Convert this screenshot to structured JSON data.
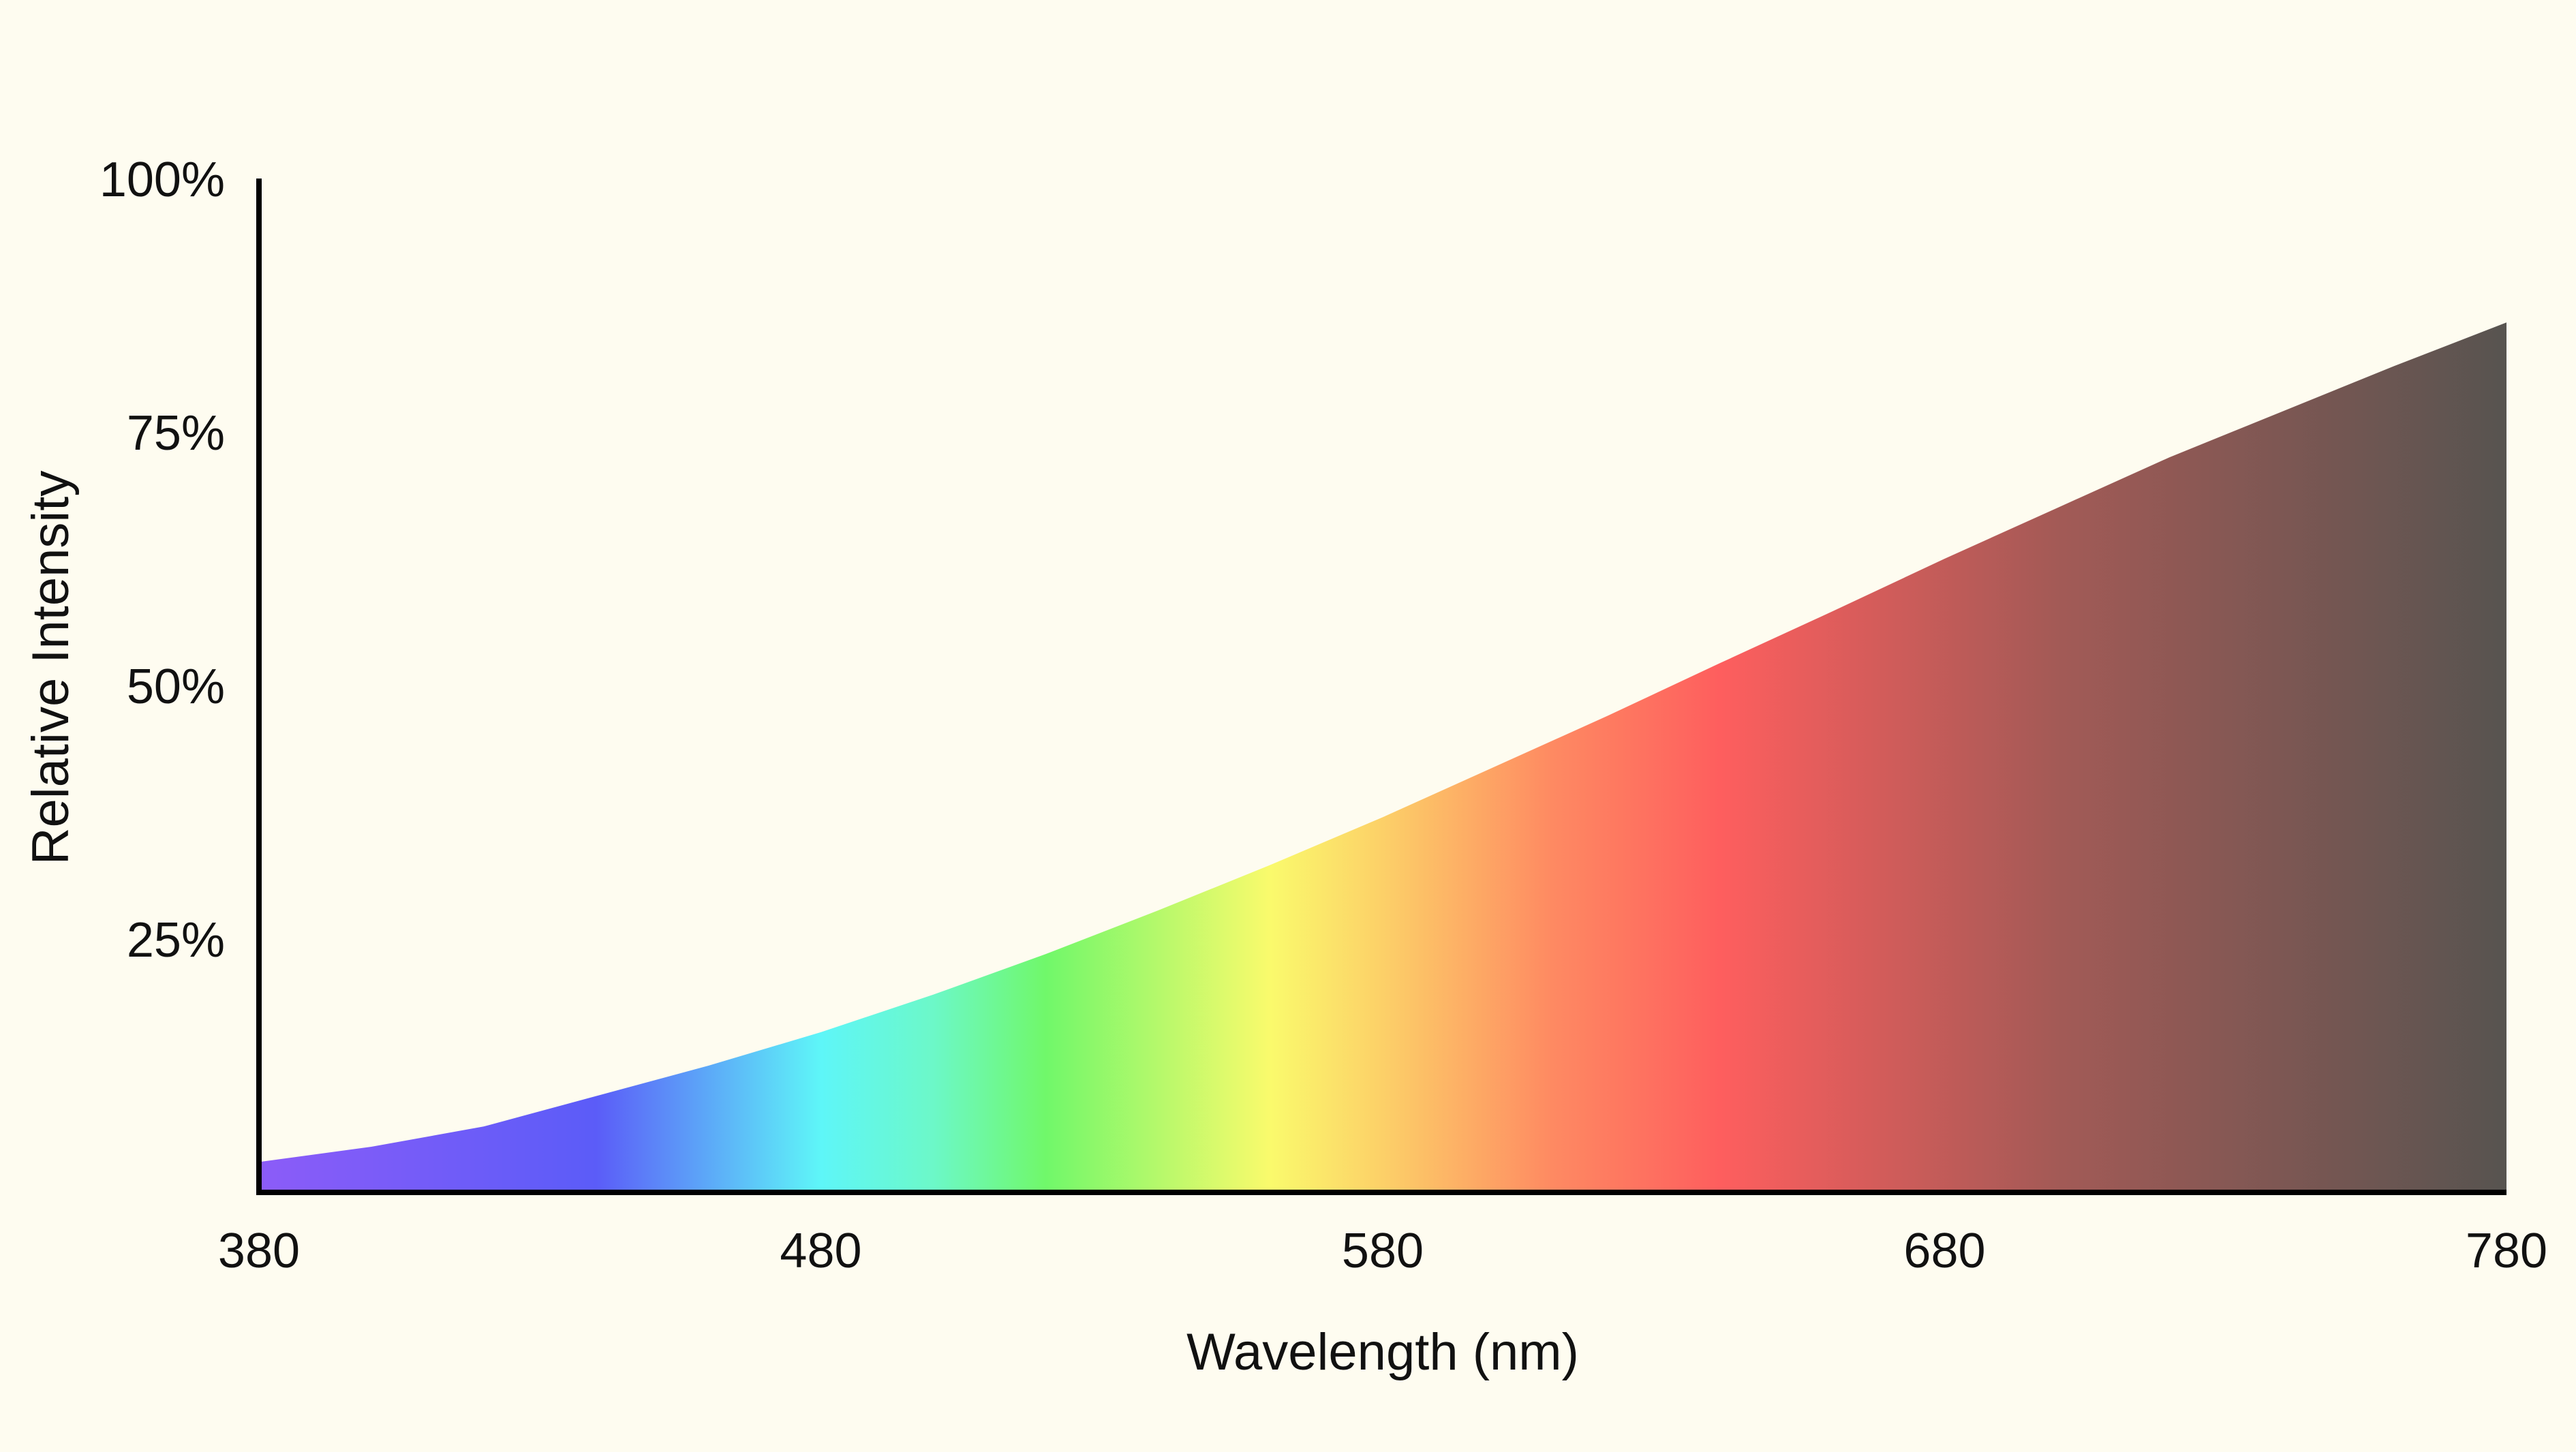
{
  "colors": {
    "background": "#FEFCF0",
    "axis": "#000000",
    "text": "#111111"
  },
  "chart_data": {
    "type": "area",
    "title": "",
    "xlabel": "Wavelength (nm)",
    "ylabel": "Relative Intensity",
    "xlim": [
      380,
      780
    ],
    "ylim": [
      0,
      100
    ],
    "x_ticks": [
      380,
      480,
      580,
      680,
      780
    ],
    "y_ticks": [
      25,
      50,
      75,
      100
    ],
    "x_tick_labels": [
      "380",
      "480",
      "580",
      "680",
      "780"
    ],
    "y_tick_labels": [
      "25%",
      "50%",
      "75%",
      "100%"
    ],
    "grid": false,
    "legend": "none",
    "series": [
      {
        "x": [
          380,
          400,
          420,
          440,
          460,
          480,
          500,
          520,
          540,
          560,
          580,
          600,
          620,
          640,
          660,
          680,
          700,
          720,
          740,
          760,
          780
        ],
        "values": [
          3,
          4.5,
          6.5,
          9.5,
          12.5,
          15.8,
          19.5,
          23.5,
          27.8,
          32.3,
          37.0,
          42.0,
          47.0,
          52.2,
          57.3,
          62.5,
          67.5,
          72.5,
          77.0,
          81.5,
          85.8
        ]
      }
    ],
    "gradient_stops": [
      {
        "nm": 380,
        "color": "#8C5CF8"
      },
      {
        "nm": 440,
        "color": "#5B5CF8"
      },
      {
        "nm": 480,
        "color": "#5EF6F8"
      },
      {
        "nm": 500,
        "color": "#6CF8C8"
      },
      {
        "nm": 520,
        "color": "#70F86A"
      },
      {
        "nm": 560,
        "color": "#FAFA6C"
      },
      {
        "nm": 580,
        "color": "#FCD068"
      },
      {
        "nm": 610,
        "color": "#FE8A62"
      },
      {
        "nm": 640,
        "color": "#FE5E5E"
      },
      {
        "nm": 700,
        "color": "#A35A56"
      },
      {
        "nm": 780,
        "color": "#575450"
      }
    ]
  }
}
